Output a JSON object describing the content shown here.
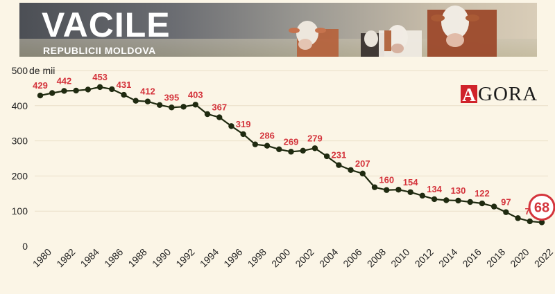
{
  "header": {
    "title": "VACILE",
    "subtitle": "REPUBLICII MOLDOVA"
  },
  "brand": {
    "mark": "A",
    "word": "GORA",
    "color": "#d0232b"
  },
  "colors": {
    "background": "#fbf5e6",
    "line": "#1f2a10",
    "label": "#d4343c",
    "highlight": "#d4343c"
  },
  "chart_data": {
    "type": "line",
    "title": "",
    "ylabel": "de mii",
    "xlabel": "",
    "ylim": [
      0,
      500
    ],
    "yticks": [
      0,
      100,
      200,
      300,
      400,
      500
    ],
    "xticks": [
      1980,
      1982,
      1984,
      1986,
      1988,
      1990,
      1992,
      1994,
      1996,
      1998,
      2000,
      2002,
      2004,
      2006,
      2008,
      2010,
      2012,
      2014,
      2016,
      2018,
      2020,
      2022
    ],
    "grid": true,
    "x": [
      1980,
      1981,
      1982,
      1983,
      1984,
      1985,
      1986,
      1987,
      1988,
      1989,
      1990,
      1991,
      1992,
      1993,
      1994,
      1995,
      1996,
      1997,
      1998,
      1999,
      2000,
      2001,
      2002,
      2003,
      2004,
      2005,
      2006,
      2007,
      2008,
      2009,
      2010,
      2011,
      2012,
      2013,
      2014,
      2015,
      2016,
      2017,
      2018,
      2019,
      2020,
      2021,
      2022
    ],
    "values": [
      429,
      436,
      442,
      443,
      446,
      453,
      447,
      431,
      414,
      412,
      402,
      395,
      397,
      403,
      376,
      367,
      342,
      319,
      290,
      286,
      276,
      269,
      272,
      279,
      256,
      231,
      217,
      207,
      168,
      160,
      161,
      154,
      144,
      134,
      131,
      130,
      126,
      122,
      113,
      97,
      80,
      71,
      68
    ],
    "labeled": {
      "1980": 429,
      "1982": 442,
      "1985": 453,
      "1987": 431,
      "1989": 412,
      "1991": 395,
      "1993": 403,
      "1995": 367,
      "1997": 319,
      "1999": 286,
      "2001": 269,
      "2003": 279,
      "2005": 231,
      "2007": 207,
      "2009": 160,
      "2011": 154,
      "2013": 134,
      "2015": 130,
      "2017": 122,
      "2019": 97,
      "2021": 71
    },
    "highlight": {
      "year": 2022,
      "value": 68,
      "label": "68"
    }
  }
}
